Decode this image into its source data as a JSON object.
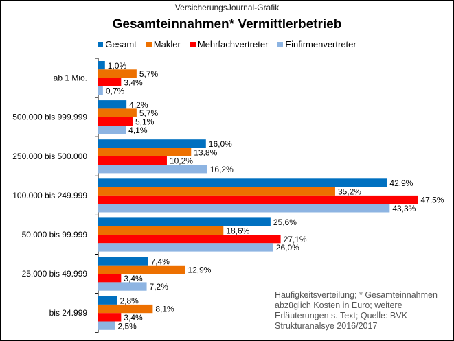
{
  "source_label": "VersicherungsJournal-Grafik",
  "note": "Häufigkeitsverteilung;  * Gesamteinnahmen abzüglich Kosten in Euro; weitere Erläuterungen  s. Text; Quelle: BVK-Strukturanalsye 2016/2017",
  "chart_data": {
    "type": "bar",
    "orientation": "horizontal",
    "title": "Gesamteinnahmen* Vermittlerbetrieb",
    "legend_position": "top",
    "grid": false,
    "xlim": [
      0,
      50
    ],
    "categories": [
      "ab 1 Mio.",
      "500.000 bis 999.999",
      "250.000 bis 500.000",
      "100.000 bis 249.999",
      "50.000 bis 99.999",
      "25.000 bis 49.999",
      "bis 24.999"
    ],
    "series": [
      {
        "name": "Gesamt",
        "color": "#0070C0",
        "values": [
          1.0,
          4.2,
          16.0,
          42.9,
          25.6,
          7.4,
          2.8
        ],
        "labels": [
          "1,0%",
          "4,2%",
          "16,0%",
          "42,9%",
          "25,6%",
          "7,4%",
          "2,8%"
        ]
      },
      {
        "name": "Makler",
        "color": "#ED7000",
        "values": [
          5.7,
          5.7,
          13.8,
          35.2,
          18.6,
          12.9,
          8.1
        ],
        "labels": [
          "5,7%",
          "5,7%",
          "13,8%",
          "35,2%",
          "18,6%",
          "12,9%",
          "8,1%"
        ]
      },
      {
        "name": "Mehrfachvertreter",
        "color": "#FF0000",
        "values": [
          3.4,
          5.1,
          10.2,
          47.5,
          27.1,
          3.4,
          3.4
        ],
        "labels": [
          "3,4%",
          "5,1%",
          "10,2%",
          "47,5%",
          "27,1%",
          "3,4%",
          "3,4%"
        ]
      },
      {
        "name": "Einfirmenvertreter",
        "color": "#8DB4E2",
        "values": [
          0.7,
          4.1,
          16.2,
          43.3,
          26.0,
          7.2,
          2.5
        ],
        "labels": [
          "0,7%",
          "4,1%",
          "16,2%",
          "43,3%",
          "26,0%",
          "7,2%",
          "2,5%"
        ]
      }
    ]
  }
}
